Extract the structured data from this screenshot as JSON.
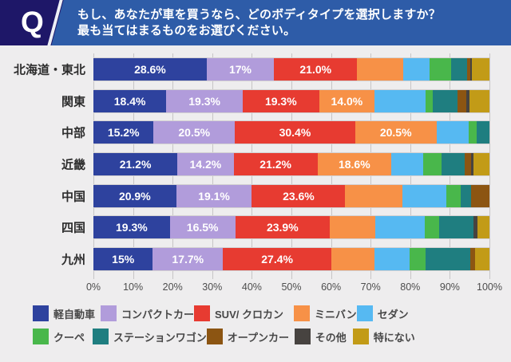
{
  "header": {
    "q": "Q",
    "question_line1": "もし、あなたが車を買うなら、どのボディタイプを選択しますか？",
    "question_line2": "最も当てはまるものをお選びください。"
  },
  "chart_data": {
    "type": "bar",
    "stacked": true,
    "orientation": "horizontal",
    "unit": "%",
    "xlim": [
      0,
      100
    ],
    "grid": true,
    "legend_position": "bottom",
    "x_ticks": [
      "0%",
      "10%",
      "20%",
      "30%",
      "40%",
      "50%",
      "60%",
      "70%",
      "80%",
      "90%",
      "100%"
    ],
    "categories": [
      "北海道・東北",
      "関東",
      "中部",
      "近畿",
      "中国",
      "四国",
      "九州"
    ],
    "series": [
      {
        "name": "軽自動車",
        "color": "#2e429e",
        "values": [
          28.6,
          18.4,
          15.2,
          21.2,
          20.9,
          19.3,
          15.0
        ]
      },
      {
        "name": "コンパクトカー",
        "color": "#b19cdb",
        "values": [
          17.0,
          19.3,
          20.5,
          14.2,
          19.1,
          16.5,
          17.7
        ]
      },
      {
        "name": "SUV/ クロカン",
        "color": "#e73b31",
        "values": [
          21.0,
          19.3,
          30.4,
          21.2,
          23.6,
          23.9,
          27.4
        ]
      },
      {
        "name": "ミニバン",
        "color": "#f79147",
        "values": [
          11.7,
          14.0,
          20.5,
          18.6,
          14.5,
          11.4,
          10.9
        ]
      },
      {
        "name": "セダン",
        "color": "#56b9f2",
        "values": [
          6.5,
          12.8,
          8.2,
          8.0,
          11.0,
          12.6,
          8.9
        ]
      },
      {
        "name": "クーペ",
        "color": "#49b74b",
        "values": [
          5.5,
          1.9,
          2.0,
          4.7,
          3.6,
          3.6,
          4.0
        ]
      },
      {
        "name": "ステーションワゴン",
        "color": "#1f7e80",
        "values": [
          4.0,
          6.2,
          3.2,
          5.9,
          2.7,
          8.7,
          11.2
        ]
      },
      {
        "name": "オープンカー",
        "color": "#8c5512",
        "values": [
          0.8,
          2.3,
          0.0,
          1.6,
          4.6,
          0.0,
          1.3
        ]
      },
      {
        "name": "その他",
        "color": "#474340",
        "values": [
          0.4,
          0.8,
          0.0,
          0.6,
          0.0,
          1.0,
          0.0
        ]
      },
      {
        "name": "特にない",
        "color": "#c29b17",
        "values": [
          4.5,
          5.0,
          0.0,
          4.0,
          0.0,
          3.0,
          3.6
        ]
      }
    ],
    "bar_labels": [
      [
        "28.6%",
        "17%",
        "21.0%",
        "",
        "",
        "",
        "",
        "",
        "",
        ""
      ],
      [
        "18.4%",
        "19.3%",
        "19.3%",
        "14.0%",
        "",
        "",
        "",
        "",
        "",
        ""
      ],
      [
        "15.2%",
        "20.5%",
        "30.4%",
        "20.5%",
        "",
        "",
        "",
        "",
        "",
        ""
      ],
      [
        "21.2%",
        "14.2%",
        "21.2%",
        "18.6%",
        "",
        "",
        "",
        "",
        "",
        ""
      ],
      [
        "20.9%",
        "19.1%",
        "23.6%",
        "",
        "",
        "",
        "",
        "",
        "",
        ""
      ],
      [
        "19.3%",
        "16.5%",
        "23.9%",
        "",
        "",
        "",
        "",
        "",
        "",
        ""
      ],
      [
        "15%",
        "17.7%",
        "27.4%",
        "",
        "",
        "",
        "",
        "",
        "",
        ""
      ]
    ]
  }
}
